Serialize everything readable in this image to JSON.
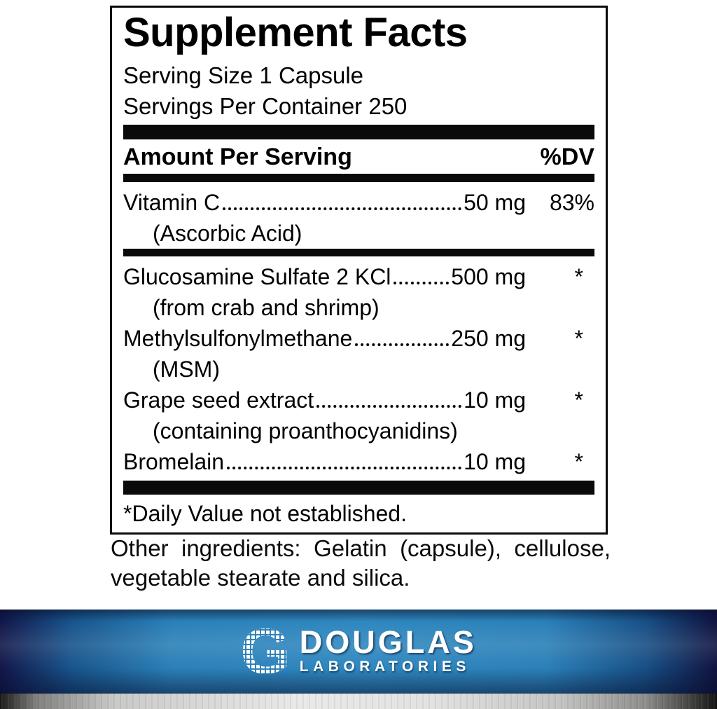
{
  "label": {
    "title": "Supplement Facts",
    "serving_size": "Serving Size 1 Capsule",
    "servings_per_container": "Servings Per Container 250",
    "header": {
      "amount_col": "Amount Per Serving",
      "dv_col": "%DV"
    },
    "rows": [
      {
        "name": "Vitamin C",
        "amount": "50 mg",
        "dv": "83%",
        "note": "(Ascorbic Acid)"
      },
      {
        "name": "Glucosamine Sulfate 2 KCl",
        "amount": "500 mg",
        "dv": "*",
        "note": "(from crab and shrimp)"
      },
      {
        "name": "Methylsulfonylmethane",
        "amount": "250 mg",
        "dv": "*",
        "note": "(MSM)"
      },
      {
        "name": "Grape seed extract",
        "amount": "10 mg",
        "dv": "*",
        "note": "(containing proanthocyanidins)"
      },
      {
        "name": "Bromelain",
        "amount": "10 mg",
        "dv": "*"
      }
    ],
    "footnote": "*Daily Value not established."
  },
  "other_ingredients": "Other ingredients: Gelatin (capsule), cellulose, vegetable stearate and silica.",
  "brand": {
    "mark_letter": "G",
    "name": "DOUGLAS",
    "subname": "LABORATORIES",
    "colors": {
      "band_blue": "#2e87bf",
      "band_navy": "#121649",
      "silver": "#e9e9e7",
      "text": "#000000"
    }
  }
}
